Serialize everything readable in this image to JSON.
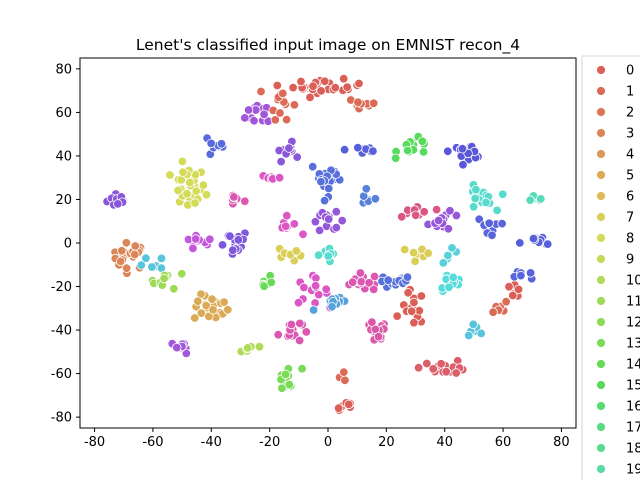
{
  "chart_data": {
    "type": "scatter",
    "title": "Lenet's classified input image on EMNIST recon_4",
    "xlabel": "",
    "ylabel": "",
    "xlim": [
      -85,
      85
    ],
    "ylim": [
      -85,
      85
    ],
    "xticks": [
      -80,
      -60,
      -40,
      -20,
      0,
      20,
      40,
      60,
      80
    ],
    "yticks": [
      -80,
      -60,
      -40,
      -20,
      0,
      20,
      40,
      60,
      80
    ],
    "grid": false,
    "legend_position": "right, outside plot area (partially cut off)",
    "legend": [
      {
        "label": "0",
        "color": "#db5f57"
      },
      {
        "label": "1",
        "color": "#db6b57"
      },
      {
        "label": "2",
        "color": "#db7657"
      },
      {
        "label": "3",
        "color": "#db8657"
      },
      {
        "label": "4",
        "color": "#db9857"
      },
      {
        "label": "5",
        "color": "#dbaa57"
      },
      {
        "label": "6",
        "color": "#dbbc57"
      },
      {
        "label": "7",
        "color": "#dbce57"
      },
      {
        "label": "8",
        "color": "#d3db57"
      },
      {
        "label": "9",
        "color": "#c1db57"
      },
      {
        "label": "10",
        "color": "#afdb57"
      },
      {
        "label": "11",
        "color": "#9ddb57"
      },
      {
        "label": "12",
        "color": "#8bdb57"
      },
      {
        "label": "13",
        "color": "#79db57"
      },
      {
        "label": "14",
        "color": "#67db57"
      },
      {
        "label": "15",
        "color": "#57db5a"
      },
      {
        "label": "16",
        "color": "#57db6c"
      },
      {
        "label": "17",
        "color": "#57db7e"
      },
      {
        "label": "18",
        "color": "#57db90"
      },
      {
        "label": "19",
        "color": "#57dba2"
      }
    ],
    "clusters": [
      {
        "cx": -72,
        "cy": 20,
        "sx": 1.8,
        "sy": 1.8,
        "n": 14,
        "color": "#8a57db"
      },
      {
        "cx": -68,
        "cy": -6,
        "sx": 3,
        "sy": 3,
        "n": 22,
        "color": "#db8657"
      },
      {
        "cx": -60,
        "cy": -10,
        "sx": 2,
        "sy": 2,
        "n": 6,
        "color": "#57c5db"
      },
      {
        "cx": -55,
        "cy": -17,
        "sx": 3,
        "sy": 2,
        "n": 10,
        "color": "#9ddb57"
      },
      {
        "cx": -48,
        "cy": 25,
        "sx": 3,
        "sy": 5,
        "n": 28,
        "color": "#d3db57"
      },
      {
        "cx": -45,
        "cy": 0,
        "sx": 3,
        "sy": 2,
        "n": 12,
        "color": "#c357db"
      },
      {
        "cx": -40,
        "cy": -30,
        "sx": 3,
        "sy": 3,
        "n": 22,
        "color": "#dbaa57"
      },
      {
        "cx": -38,
        "cy": 45,
        "sx": 1.5,
        "sy": 3,
        "n": 10,
        "color": "#576bdb"
      },
      {
        "cx": -33,
        "cy": 0,
        "sx": 3,
        "sy": 3,
        "n": 18,
        "color": "#7e57db"
      },
      {
        "cx": -27,
        "cy": -48,
        "sx": 3,
        "sy": 1.5,
        "n": 10,
        "color": "#afdb57"
      },
      {
        "cx": -22,
        "cy": 60,
        "sx": 3,
        "sy": 3,
        "n": 12,
        "color": "#a257db"
      },
      {
        "cx": -22,
        "cy": -18,
        "sx": 1.5,
        "sy": 2,
        "n": 8,
        "color": "#67db57"
      },
      {
        "cx": -16,
        "cy": 65,
        "sx": 2,
        "sy": 4,
        "n": 14,
        "color": "#db6b57"
      },
      {
        "cx": -14,
        "cy": 42,
        "sx": 2,
        "sy": 2,
        "n": 10,
        "color": "#8a57db"
      },
      {
        "cx": -14,
        "cy": 8,
        "sx": 2,
        "sy": 2,
        "n": 8,
        "color": "#db57c5"
      },
      {
        "cx": -13,
        "cy": -5,
        "sx": 2,
        "sy": 2,
        "n": 8,
        "color": "#dbce57"
      },
      {
        "cx": -13,
        "cy": -40,
        "sx": 2,
        "sy": 3,
        "n": 14,
        "color": "#db57b1"
      },
      {
        "cx": -14,
        "cy": -63,
        "sx": 2.5,
        "sy": 3,
        "n": 12,
        "color": "#79db57"
      },
      {
        "cx": 0,
        "cy": 72,
        "sx": 6,
        "sy": 1.5,
        "n": 26,
        "color": "#db5f57"
      },
      {
        "cx": 0,
        "cy": 30,
        "sx": 3,
        "sy": 4,
        "n": 22,
        "color": "#5770db"
      },
      {
        "cx": 0,
        "cy": 10,
        "sx": 3,
        "sy": 2,
        "n": 14,
        "color": "#9457db"
      },
      {
        "cx": 0,
        "cy": -5,
        "sx": 2,
        "sy": 2,
        "n": 8,
        "color": "#57dbcc"
      },
      {
        "cx": -6,
        "cy": -22,
        "sx": 3,
        "sy": 3,
        "n": 14,
        "color": "#db57c5"
      },
      {
        "cx": 3,
        "cy": -28,
        "sx": 4,
        "sy": 1.5,
        "n": 10,
        "color": "#57a2db"
      },
      {
        "cx": 6,
        "cy": -75,
        "sx": 1.5,
        "sy": 1.5,
        "n": 8,
        "color": "#db5f57"
      },
      {
        "cx": 12,
        "cy": 64,
        "sx": 3,
        "sy": 2,
        "n": 12,
        "color": "#db6b57"
      },
      {
        "cx": 12,
        "cy": 43,
        "sx": 3,
        "sy": 1.5,
        "n": 10,
        "color": "#575fdb"
      },
      {
        "cx": 14,
        "cy": 20,
        "sx": 2,
        "sy": 1.5,
        "n": 6,
        "color": "#5782db"
      },
      {
        "cx": 12,
        "cy": -18,
        "sx": 4,
        "sy": 2,
        "n": 16,
        "color": "#db57b1"
      },
      {
        "cx": 16,
        "cy": -42,
        "sx": 2,
        "sy": 3,
        "n": 16,
        "color": "#db57a7"
      },
      {
        "cx": 23,
        "cy": -18,
        "sx": 3,
        "sy": 1.5,
        "n": 14,
        "color": "#5770db"
      },
      {
        "cx": 29,
        "cy": -30,
        "sx": 2,
        "sy": 4,
        "n": 16,
        "color": "#db5f57"
      },
      {
        "cx": 30,
        "cy": 44,
        "sx": 3,
        "sy": 2,
        "n": 16,
        "color": "#57db5a"
      },
      {
        "cx": 30,
        "cy": 14,
        "sx": 3,
        "sy": 2,
        "n": 12,
        "color": "#db5783"
      },
      {
        "cx": 32,
        "cy": -5,
        "sx": 2,
        "sy": 2,
        "n": 8,
        "color": "#dbce57"
      },
      {
        "cx": 40,
        "cy": -57,
        "sx": 4,
        "sy": 1.5,
        "n": 18,
        "color": "#db5f6b"
      },
      {
        "cx": 40,
        "cy": 10,
        "sx": 3,
        "sy": 2,
        "n": 12,
        "color": "#9857db"
      },
      {
        "cx": 42,
        "cy": -5,
        "sx": 1.5,
        "sy": 2,
        "n": 6,
        "color": "#57d1db"
      },
      {
        "cx": 42,
        "cy": -18,
        "sx": 2,
        "sy": 2,
        "n": 14,
        "color": "#57dbdb"
      },
      {
        "cx": 48,
        "cy": 42,
        "sx": 3,
        "sy": 1.5,
        "n": 14,
        "color": "#5a57db"
      },
      {
        "cx": 52,
        "cy": 20,
        "sx": 2.5,
        "sy": 3,
        "n": 20,
        "color": "#57dbcc"
      },
      {
        "cx": 50,
        "cy": -40,
        "sx": 1.5,
        "sy": 1.5,
        "n": 6,
        "color": "#57c5db"
      },
      {
        "cx": 55,
        "cy": 8,
        "sx": 2,
        "sy": 2,
        "n": 10,
        "color": "#5764db"
      },
      {
        "cx": 58,
        "cy": -30,
        "sx": 1.5,
        "sy": 1.5,
        "n": 6,
        "color": "#db6b57"
      },
      {
        "cx": 64,
        "cy": -22,
        "sx": 2,
        "sy": 2,
        "n": 8,
        "color": "#db5f57"
      },
      {
        "cx": 70,
        "cy": 20,
        "sx": 2,
        "sy": 1,
        "n": 6,
        "color": "#57dbb8"
      },
      {
        "cx": 72,
        "cy": 0,
        "sx": 3,
        "sy": 1.5,
        "n": 10,
        "color": "#575fdb"
      },
      {
        "cx": 67,
        "cy": -15,
        "sx": 1.5,
        "sy": 1.5,
        "n": 6,
        "color": "#5764db"
      },
      {
        "cx": -50,
        "cy": -48,
        "sx": 2,
        "sy": 1.5,
        "n": 8,
        "color": "#a257db"
      },
      {
        "cx": -32,
        "cy": 20,
        "sx": 2,
        "sy": 2,
        "n": 8,
        "color": "#db57b1"
      },
      {
        "cx": -20,
        "cy": 30,
        "sx": 2,
        "sy": 1,
        "n": 6,
        "color": "#db57c5"
      },
      {
        "cx": 5,
        "cy": -62,
        "sx": 1,
        "sy": 2,
        "n": 4,
        "color": "#db6b57"
      }
    ]
  }
}
